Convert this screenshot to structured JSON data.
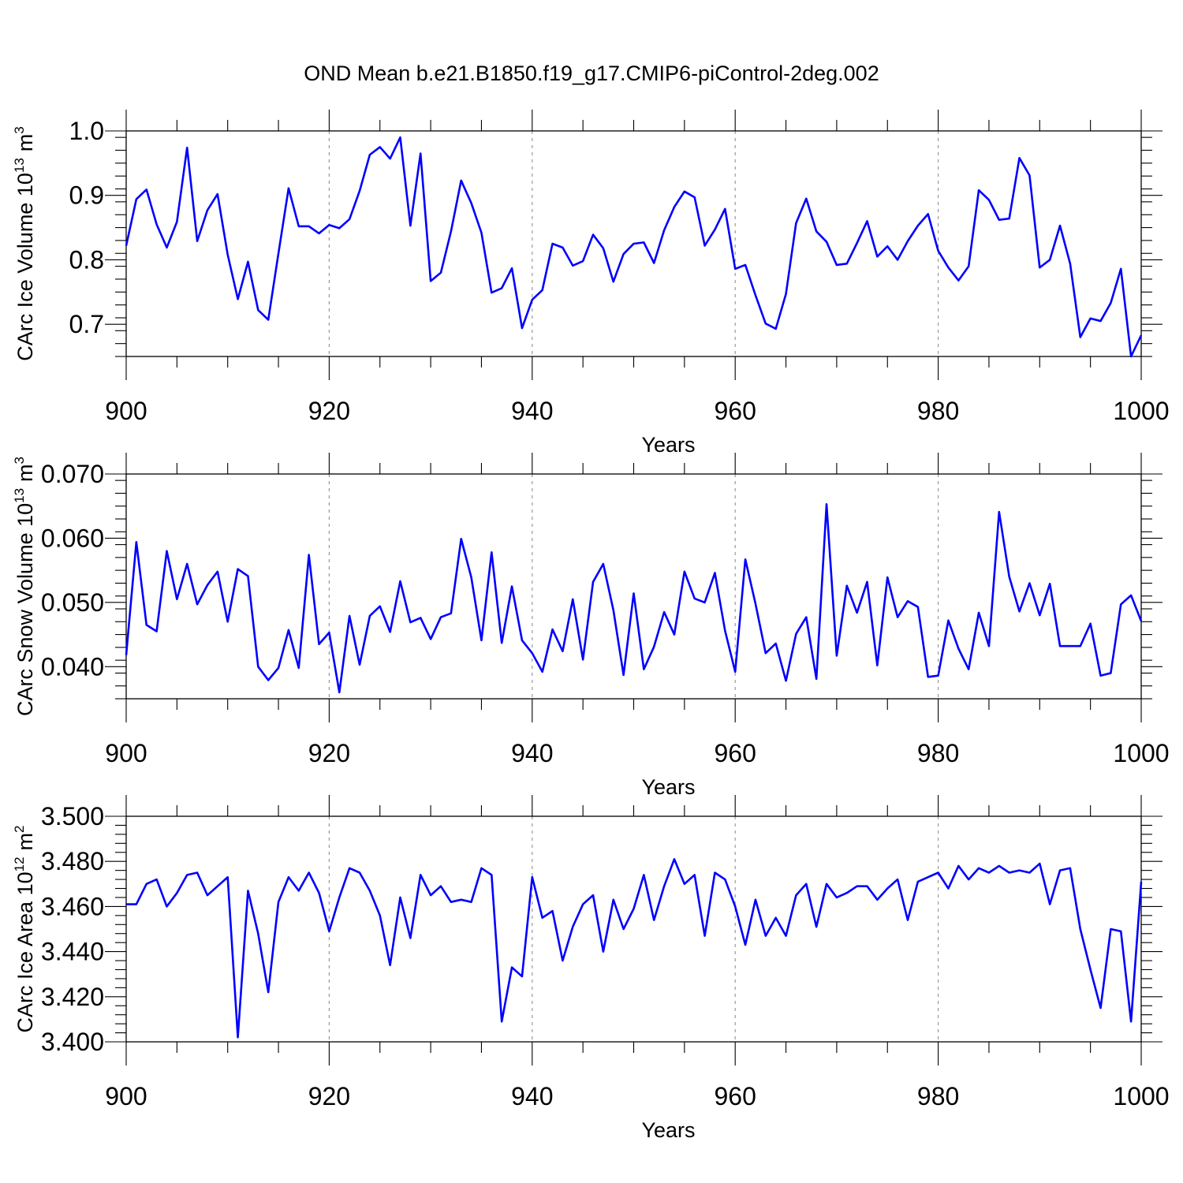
{
  "title": "OND Mean b.e21.B1850.f19_g17.CMIP6-piControl-2deg.002",
  "colors": {
    "line": "#0000ff",
    "frame": "#000000",
    "grid": "#9a9a9a"
  },
  "chart_data": [
    {
      "type": "line",
      "ylabel": "CArc Ice Volume 10",
      "ylabel_sup": "13",
      "ylabel_unit": "m",
      "ylabel_unit_sup": "3",
      "xlabel": "Years",
      "xlim": [
        900,
        1000
      ],
      "ylim": [
        0.65,
        1.0
      ],
      "xticks": [
        900,
        920,
        940,
        960,
        980,
        1000
      ],
      "xtick_labels": [
        "900",
        "920",
        "940",
        "960",
        "980",
        "1000"
      ],
      "yticks": [
        0.7,
        0.8,
        0.9,
        1.0
      ],
      "ytick_labels": [
        "0.7",
        "0.8",
        "0.9",
        "1.0"
      ],
      "grid_x": [
        920,
        940,
        960,
        980
      ],
      "x_start": 900,
      "values": [
        0.822,
        0.894,
        0.909,
        0.855,
        0.819,
        0.859,
        0.974,
        0.829,
        0.877,
        0.902,
        0.808,
        0.739,
        0.797,
        0.722,
        0.707,
        0.81,
        0.911,
        0.852,
        0.852,
        0.841,
        0.854,
        0.849,
        0.863,
        0.907,
        0.963,
        0.975,
        0.957,
        0.99,
        0.853,
        0.965,
        0.767,
        0.78,
        0.844,
        0.923,
        0.888,
        0.842,
        0.749,
        0.756,
        0.787,
        0.694,
        0.738,
        0.753,
        0.825,
        0.819,
        0.791,
        0.798,
        0.839,
        0.818,
        0.766,
        0.809,
        0.825,
        0.827,
        0.795,
        0.846,
        0.882,
        0.906,
        0.897,
        0.822,
        0.847,
        0.879,
        0.786,
        0.792,
        0.745,
        0.701,
        0.693,
        0.747,
        0.857,
        0.895,
        0.844,
        0.828,
        0.792,
        0.794,
        0.826,
        0.86,
        0.805,
        0.821,
        0.8,
        0.829,
        0.853,
        0.871,
        0.814,
        0.788,
        0.768,
        0.79,
        0.908,
        0.893,
        0.862,
        0.864,
        0.958,
        0.931,
        0.788,
        0.8,
        0.853,
        0.794,
        0.68,
        0.709,
        0.705,
        0.733,
        0.786,
        0.65,
        0.683
      ]
    },
    {
      "type": "line",
      "ylabel": "CArc Snow Volume 10",
      "ylabel_sup": "13",
      "ylabel_unit": "m",
      "ylabel_unit_sup": "3",
      "xlabel": "Years",
      "xlim": [
        900,
        1000
      ],
      "ylim": [
        0.035,
        0.07
      ],
      "xticks": [
        900,
        920,
        940,
        960,
        980,
        1000
      ],
      "xtick_labels": [
        "900",
        "920",
        "940",
        "960",
        "980",
        "1000"
      ],
      "yticks": [
        0.04,
        0.05,
        0.06,
        0.07
      ],
      "ytick_labels": [
        "0.040",
        "0.050",
        "0.060",
        "0.070"
      ],
      "grid_x": [
        920,
        940,
        960,
        980
      ],
      "x_start": 900,
      "values": [
        0.0418,
        0.0594,
        0.0465,
        0.0455,
        0.058,
        0.0505,
        0.056,
        0.0497,
        0.0527,
        0.0548,
        0.047,
        0.0552,
        0.0541,
        0.04,
        0.0379,
        0.0398,
        0.0457,
        0.0398,
        0.0574,
        0.0435,
        0.0453,
        0.036,
        0.0479,
        0.0403,
        0.0479,
        0.0494,
        0.0454,
        0.0533,
        0.0469,
        0.0476,
        0.0443,
        0.0477,
        0.0483,
        0.0599,
        0.0539,
        0.0441,
        0.0578,
        0.0437,
        0.0525,
        0.0441,
        0.0421,
        0.0392,
        0.0458,
        0.0424,
        0.0505,
        0.0411,
        0.0532,
        0.056,
        0.0488,
        0.0387,
        0.0514,
        0.0396,
        0.0431,
        0.0485,
        0.045,
        0.0548,
        0.0506,
        0.05,
        0.0546,
        0.0456,
        0.0392,
        0.0567,
        0.0498,
        0.0421,
        0.0436,
        0.0378,
        0.0451,
        0.0477,
        0.0381,
        0.0653,
        0.0417,
        0.0526,
        0.0484,
        0.0532,
        0.0402,
        0.0539,
        0.0477,
        0.0502,
        0.0493,
        0.0384,
        0.0386,
        0.0472,
        0.0428,
        0.0396,
        0.0484,
        0.0432,
        0.0641,
        0.054,
        0.0486,
        0.053,
        0.048,
        0.0529,
        0.0432,
        0.0432,
        0.0432,
        0.0467,
        0.0386,
        0.039,
        0.0497,
        0.0511,
        0.0471
      ]
    },
    {
      "type": "line",
      "ylabel": "CArc Ice Area 10",
      "ylabel_sup": "12",
      "ylabel_unit": "m",
      "ylabel_unit_sup": "2",
      "xlabel": "Years",
      "xlim": [
        900,
        1000
      ],
      "ylim": [
        3.4,
        3.5
      ],
      "xticks": [
        900,
        920,
        940,
        960,
        980,
        1000
      ],
      "xtick_labels": [
        "900",
        "920",
        "940",
        "960",
        "980",
        "1000"
      ],
      "yticks": [
        3.4,
        3.42,
        3.44,
        3.46,
        3.48,
        3.5
      ],
      "ytick_labels": [
        "3.400",
        "3.420",
        "3.440",
        "3.460",
        "3.480",
        "3.500"
      ],
      "grid_x": [
        920,
        940,
        960,
        980
      ],
      "x_start": 900,
      "values": [
        3.461,
        3.461,
        3.47,
        3.472,
        3.46,
        3.466,
        3.474,
        3.475,
        3.465,
        3.469,
        3.473,
        3.402,
        3.467,
        3.448,
        3.422,
        3.462,
        3.473,
        3.467,
        3.475,
        3.466,
        3.449,
        3.464,
        3.477,
        3.475,
        3.467,
        3.456,
        3.434,
        3.464,
        3.446,
        3.474,
        3.465,
        3.469,
        3.462,
        3.463,
        3.462,
        3.477,
        3.474,
        3.409,
        3.433,
        3.429,
        3.473,
        3.455,
        3.458,
        3.436,
        3.451,
        3.461,
        3.465,
        3.44,
        3.463,
        3.45,
        3.459,
        3.474,
        3.454,
        3.469,
        3.481,
        3.47,
        3.474,
        3.447,
        3.475,
        3.472,
        3.46,
        3.443,
        3.463,
        3.447,
        3.455,
        3.447,
        3.465,
        3.47,
        3.451,
        3.47,
        3.464,
        3.466,
        3.469,
        3.469,
        3.463,
        3.468,
        3.472,
        3.454,
        3.471,
        3.473,
        3.475,
        3.468,
        3.478,
        3.472,
        3.477,
        3.475,
        3.478,
        3.475,
        3.476,
        3.475,
        3.479,
        3.461,
        3.476,
        3.477,
        3.45,
        3.432,
        3.415,
        3.45,
        3.449,
        3.409,
        3.471
      ]
    }
  ]
}
